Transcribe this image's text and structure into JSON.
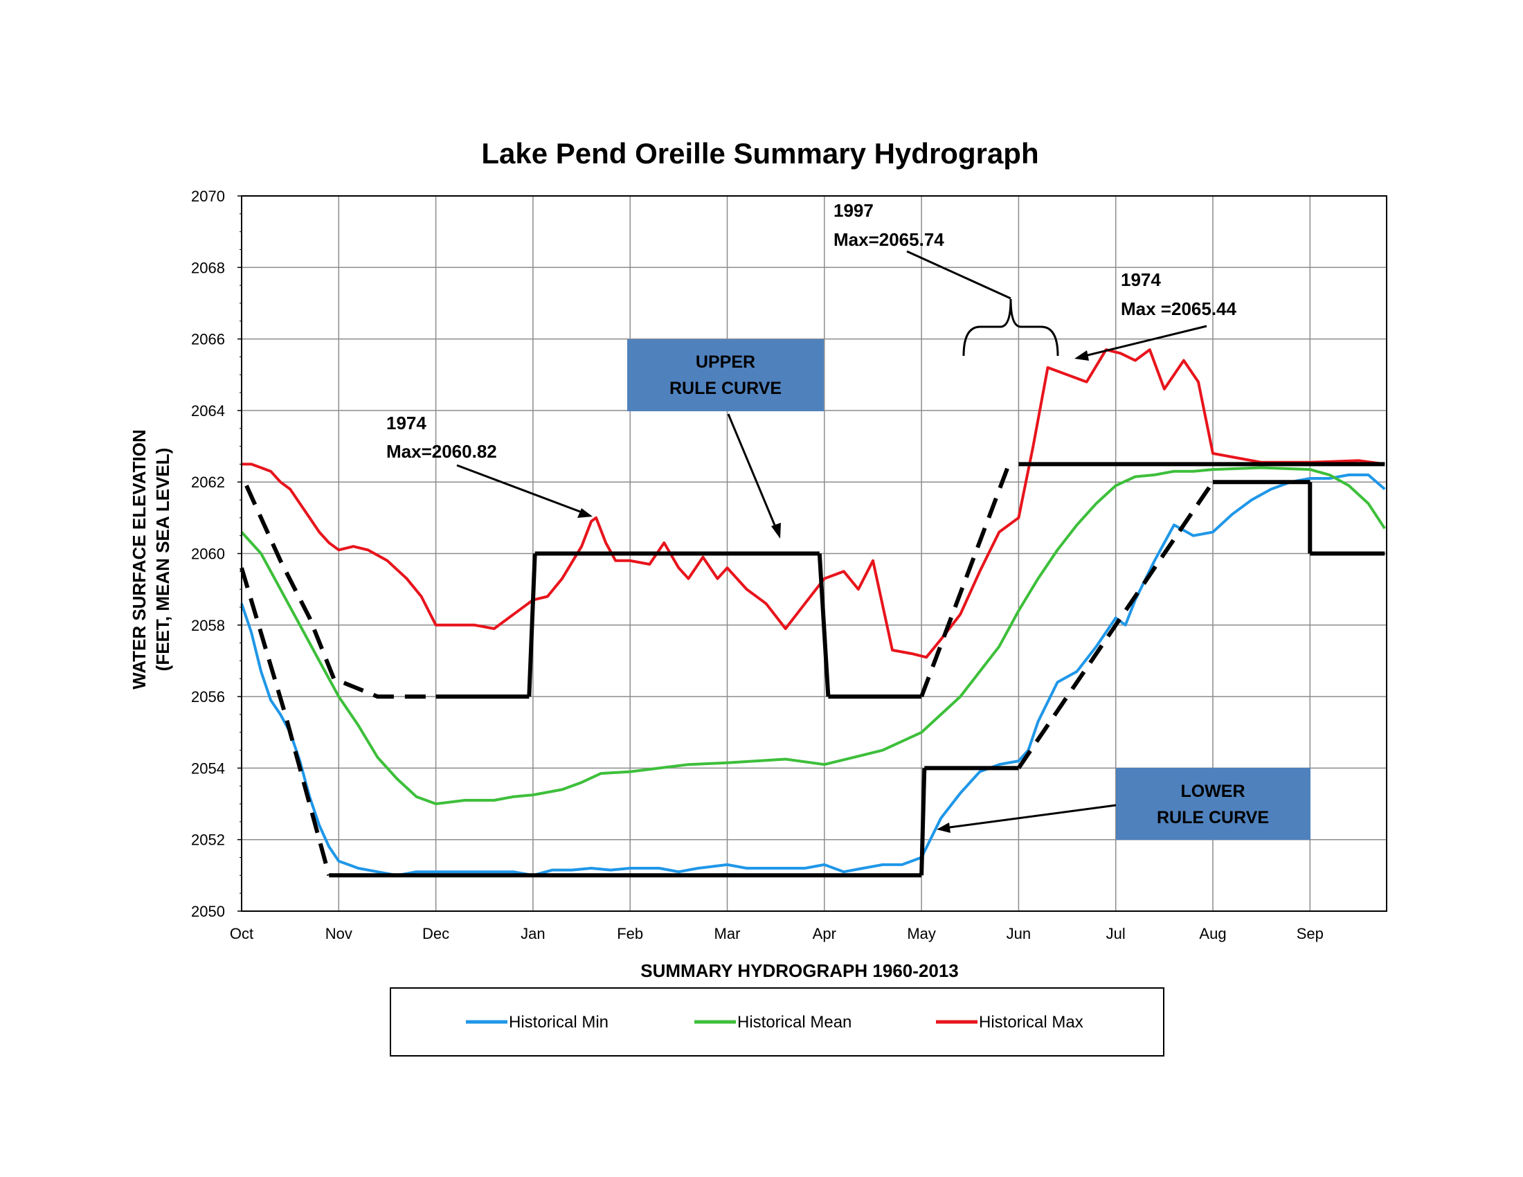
{
  "chart_data": {
    "type": "line",
    "title": "Lake Pend Oreille Summary Hydrograph",
    "xlabel": "SUMMARY HYDROGRAPH 1960-2013",
    "ylabel_lines": [
      "WATER SURFACE ELEVATION",
      "(FEET, MEAN SEA LEVEL)"
    ],
    "ylim": [
      2050,
      2070
    ],
    "yticks": [
      2050,
      2052,
      2054,
      2056,
      2058,
      2060,
      2062,
      2064,
      2066,
      2068,
      2070
    ],
    "xticks": [
      "Oct",
      "Nov",
      "Dec",
      "Jan",
      "Feb",
      "Mar",
      "Apr",
      "May",
      "Jun",
      "Jul",
      "Aug",
      "Sep"
    ],
    "grid": true,
    "legend_position": "bottom",
    "colors": {
      "min": "#1f97e8",
      "mean": "#3dbf3a",
      "max": "#e8141c",
      "rule": "#000000",
      "box": "#4f81bd"
    },
    "series": [
      {
        "name": "Historical Min",
        "key": "min",
        "x": [
          0,
          0.1,
          0.2,
          0.3,
          0.4,
          0.5,
          0.6,
          0.7,
          0.8,
          0.9,
          1.0,
          1.2,
          1.4,
          1.6,
          1.8,
          2.0,
          2.2,
          2.4,
          2.6,
          2.8,
          3.0,
          3.2,
          3.4,
          3.6,
          3.8,
          4.0,
          4.3,
          4.5,
          4.7,
          5.0,
          5.2,
          5.5,
          5.8,
          6.0,
          6.2,
          6.4,
          6.6,
          6.8,
          7.0,
          7.2,
          7.4,
          7.6,
          7.8,
          8.0,
          8.1,
          8.2,
          8.4,
          8.6,
          8.8,
          9.0,
          9.1,
          9.2,
          9.4,
          9.6,
          9.8,
          10.0,
          10.2,
          10.4,
          10.6,
          10.8,
          11.0,
          11.2,
          11.4,
          11.6,
          11.77
        ],
        "values": [
          2058.6,
          2057.8,
          2056.7,
          2055.9,
          2055.5,
          2055.0,
          2054.2,
          2053.2,
          2052.4,
          2051.8,
          2051.4,
          2051.2,
          2051.1,
          2051.0,
          2051.1,
          2051.1,
          2051.1,
          2051.1,
          2051.1,
          2051.1,
          2051.0,
          2051.15,
          2051.15,
          2051.2,
          2051.15,
          2051.2,
          2051.2,
          2051.1,
          2051.2,
          2051.3,
          2051.2,
          2051.2,
          2051.2,
          2051.3,
          2051.1,
          2051.2,
          2051.3,
          2051.3,
          2051.5,
          2052.6,
          2053.3,
          2053.9,
          2054.1,
          2054.2,
          2054.5,
          2055.3,
          2056.4,
          2056.7,
          2057.4,
          2058.2,
          2058.0,
          2058.7,
          2059.8,
          2060.8,
          2060.5,
          2060.6,
          2061.1,
          2061.5,
          2061.8,
          2062.0,
          2062.1,
          2062.1,
          2062.2,
          2062.2,
          2061.8
        ]
      },
      {
        "name": "Historical Mean",
        "key": "mean",
        "x": [
          0,
          0.2,
          0.4,
          0.6,
          0.8,
          1.0,
          1.2,
          1.4,
          1.6,
          1.8,
          2.0,
          2.3,
          2.6,
          2.8,
          3.0,
          3.3,
          3.5,
          3.7,
          4.0,
          4.3,
          4.6,
          5.0,
          5.3,
          5.6,
          6.0,
          6.3,
          6.6,
          7.0,
          7.2,
          7.4,
          7.6,
          7.8,
          8.0,
          8.2,
          8.4,
          8.6,
          8.8,
          9.0,
          9.2,
          9.4,
          9.6,
          9.8,
          10.0,
          10.5,
          11.0,
          11.2,
          11.4,
          11.6,
          11.77
        ],
        "values": [
          2060.6,
          2060.0,
          2059.0,
          2058.0,
          2057.0,
          2056.0,
          2055.2,
          2054.3,
          2053.7,
          2053.2,
          2053.0,
          2053.1,
          2053.1,
          2053.2,
          2053.25,
          2053.4,
          2053.6,
          2053.85,
          2053.9,
          2054.0,
          2054.1,
          2054.15,
          2054.2,
          2054.25,
          2054.1,
          2054.3,
          2054.5,
          2055.0,
          2055.5,
          2056.0,
          2056.7,
          2057.4,
          2058.4,
          2059.3,
          2060.1,
          2060.8,
          2061.4,
          2061.9,
          2062.15,
          2062.2,
          2062.3,
          2062.3,
          2062.35,
          2062.4,
          2062.35,
          2062.2,
          2061.9,
          2061.4,
          2060.7
        ]
      },
      {
        "name": "Historical Max",
        "key": "max",
        "x": [
          0,
          0.1,
          0.2,
          0.3,
          0.4,
          0.5,
          0.6,
          0.7,
          0.8,
          0.9,
          1.0,
          1.15,
          1.3,
          1.5,
          1.7,
          1.85,
          2.0,
          2.2,
          2.4,
          2.6,
          2.8,
          3.0,
          3.15,
          3.3,
          3.5,
          3.6,
          3.65,
          3.75,
          3.85,
          4.0,
          4.2,
          4.35,
          4.5,
          4.6,
          4.75,
          4.9,
          5.0,
          5.2,
          5.4,
          5.6,
          5.8,
          6.0,
          6.2,
          6.35,
          6.5,
          6.7,
          6.9,
          7.05,
          7.2,
          7.4,
          7.6,
          7.8,
          8.0,
          8.15,
          8.3,
          8.5,
          8.7,
          8.9,
          9.05,
          9.2,
          9.35,
          9.5,
          9.6,
          9.7,
          9.85,
          10.0,
          10.5,
          11.0,
          11.5,
          11.77
        ],
        "values": [
          2062.5,
          2062.5,
          2062.4,
          2062.3,
          2062.0,
          2061.8,
          2061.4,
          2061.0,
          2060.6,
          2060.3,
          2060.1,
          2060.2,
          2060.1,
          2059.8,
          2059.3,
          2058.8,
          2058.0,
          2058.0,
          2058.0,
          2057.9,
          2058.3,
          2058.7,
          2058.8,
          2059.3,
          2060.2,
          2060.9,
          2061.0,
          2060.3,
          2059.8,
          2059.8,
          2059.7,
          2060.3,
          2059.6,
          2059.3,
          2059.9,
          2059.3,
          2059.6,
          2059.0,
          2058.6,
          2057.9,
          2058.6,
          2059.3,
          2059.5,
          2059.0,
          2059.8,
          2057.3,
          2057.2,
          2057.1,
          2057.6,
          2058.3,
          2059.5,
          2060.6,
          2061.0,
          2063.0,
          2065.2,
          2065.0,
          2064.8,
          2065.7,
          2065.6,
          2065.4,
          2065.7,
          2064.6,
          2065.0,
          2065.4,
          2064.8,
          2062.8,
          2062.55,
          2062.55,
          2062.6,
          2062.5
        ]
      }
    ],
    "upper_rule_curve": {
      "solid": {
        "x": [
          1.0,
          1.2,
          1.9,
          2.95,
          3.0,
          3.02,
          5.94,
          6.0,
          6.04,
          7.0,
          10.0,
          11.77
        ],
        "values": [
          2056.5,
          2056.0,
          2056.0,
          2056.0,
          2060.0,
          2060.0,
          2060.0,
          2056.0,
          2056.0,
          2056.0,
          2062.5,
          2062.5
        ],
        "note": "drawn as segments"
      },
      "segments_solid": [
        {
          "x": [
            2.0,
            2.96
          ],
          "values": [
            2056.0,
            2056.0
          ]
        },
        {
          "x": [
            2.96,
            3.02
          ],
          "values": [
            2056.0,
            2060.0
          ]
        },
        {
          "x": [
            3.02,
            5.95
          ],
          "values": [
            2060.0,
            2060.0
          ]
        },
        {
          "x": [
            5.95,
            6.04
          ],
          "values": [
            2060.0,
            2056.0
          ]
        },
        {
          "x": [
            6.04,
            7.0
          ],
          "values": [
            2056.0,
            2056.0
          ]
        },
        {
          "x": [
            8.0,
            11.77
          ],
          "values": [
            2062.5,
            2062.5
          ]
        }
      ],
      "segments_dashed": [
        {
          "x": [
            0.05,
            0.4,
            0.7,
            0.95,
            1.4,
            1.95
          ],
          "values": [
            2061.9,
            2059.8,
            2058.2,
            2056.5,
            2056.0,
            2056.0
          ]
        },
        {
          "x": [
            7.0,
            7.9
          ],
          "values": [
            2056.0,
            2062.5
          ]
        }
      ]
    },
    "lower_rule_curve": {
      "segments_solid": [
        {
          "x": [
            0.9,
            7.0
          ],
          "values": [
            2051.0,
            2051.0
          ]
        },
        {
          "x": [
            7.0,
            7.03
          ],
          "values": [
            2051.0,
            2054.0
          ]
        },
        {
          "x": [
            7.03,
            8.0
          ],
          "values": [
            2054.0,
            2054.0
          ]
        },
        {
          "x": [
            10.0,
            11.0
          ],
          "values": [
            2062.0,
            2062.0
          ]
        },
        {
          "x": [
            11.0,
            11.0
          ],
          "values": [
            2062.0,
            2060.0
          ]
        },
        {
          "x": [
            11.0,
            11.77
          ],
          "values": [
            2060.0,
            2060.0
          ]
        }
      ],
      "segments_dashed": [
        {
          "x": [
            0.0,
            0.45,
            0.75,
            0.9
          ],
          "values": [
            2059.6,
            2055.5,
            2052.5,
            2051.0
          ]
        },
        {
          "x": [
            8.0,
            10.0
          ],
          "values": [
            2054.0,
            2062.0
          ]
        }
      ]
    }
  },
  "annotations": {
    "a1974_winter": {
      "year": "1974",
      "max": "Max=2060.82"
    },
    "a1997": {
      "year": "1997",
      "max": "Max=2065.74"
    },
    "a1974_spring": {
      "year": "1974",
      "max": "Max =2065.44"
    },
    "upper_box": {
      "line1": "UPPER",
      "line2": "RULE CURVE"
    },
    "lower_box": {
      "line1": "LOWER",
      "line2": "RULE CURVE"
    }
  }
}
